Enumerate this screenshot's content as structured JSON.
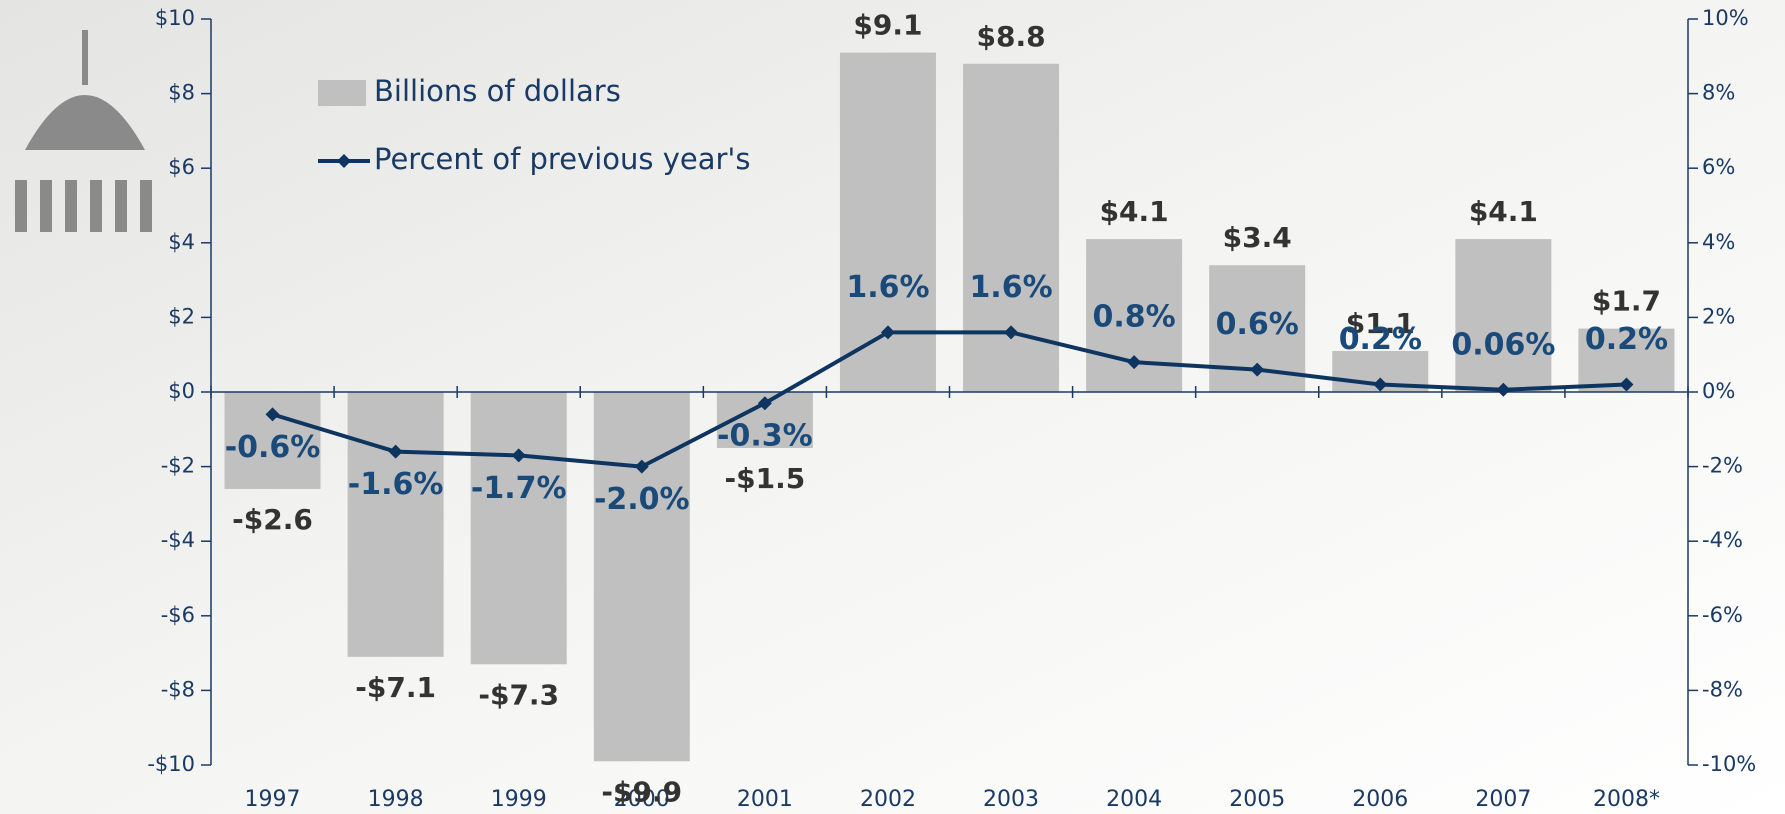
{
  "chart_data": {
    "type": "bar",
    "categories": [
      "1997",
      "1998",
      "1999",
      "2000",
      "2001",
      "2002",
      "2003",
      "2004",
      "2005",
      "2006",
      "2007",
      "2008*"
    ],
    "series": [
      {
        "name": "Billions of dollars",
        "type": "bar",
        "color": "#c0c0c0",
        "values": [
          -2.6,
          -7.1,
          -7.3,
          -9.9,
          -1.5,
          9.1,
          8.8,
          4.1,
          3.4,
          1.1,
          4.1,
          1.7
        ],
        "value_labels": [
          "-$2.6",
          "-$7.1",
          "-$7.3",
          "-$9.9",
          "-$1.5",
          "$9.1",
          "$8.8",
          "$4.1",
          "$3.4",
          "$1.1",
          "$4.1",
          "$1.7"
        ]
      },
      {
        "name": "Percent of previous year's",
        "type": "line",
        "axis": "y2",
        "color": "#0d3560",
        "values": [
          -0.6,
          -1.6,
          -1.7,
          -2.0,
          -0.3,
          1.6,
          1.6,
          0.8,
          0.6,
          0.2,
          0.06,
          0.2
        ],
        "value_labels": [
          "-0.6%",
          "-1.6%",
          "-1.7%",
          "-2.0%",
          "-0.3%",
          "1.6%",
          "1.6%",
          "0.8%",
          "0.6%",
          "0.2%",
          "0.06%",
          "0.2%"
        ]
      }
    ],
    "ylim": [
      -10,
      10
    ],
    "yticks": [
      {
        "value": -10,
        "label": "-$10"
      },
      {
        "value": -8,
        "label": "-$8"
      },
      {
        "value": -6,
        "label": "-$6"
      },
      {
        "value": -4,
        "label": "-$4"
      },
      {
        "value": -2,
        "label": "-$2"
      },
      {
        "value": 0,
        "label": "$0"
      },
      {
        "value": 2,
        "label": "$2"
      },
      {
        "value": 4,
        "label": "$4"
      },
      {
        "value": 6,
        "label": "$6"
      },
      {
        "value": 8,
        "label": "$8"
      },
      {
        "value": 10,
        "label": "$10"
      }
    ],
    "y2lim": [
      -10,
      10
    ],
    "y2ticks": [
      {
        "value": -10,
        "label": "-10%"
      },
      {
        "value": -8,
        "label": "-8%"
      },
      {
        "value": -6,
        "label": "-6%"
      },
      {
        "value": -4,
        "label": "-4%"
      },
      {
        "value": -2,
        "label": "-2%"
      },
      {
        "value": 0,
        "label": "0%"
      },
      {
        "value": 2,
        "label": "2%"
      },
      {
        "value": 4,
        "label": "4%"
      },
      {
        "value": 6,
        "label": "6%"
      },
      {
        "value": 8,
        "label": "8%"
      },
      {
        "value": 10,
        "label": "10%"
      }
    ],
    "legend": "upper left"
  }
}
